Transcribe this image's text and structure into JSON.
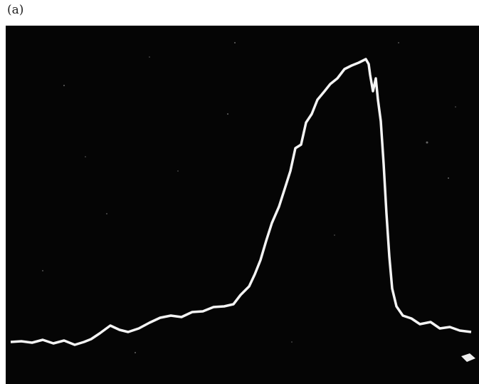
{
  "figure": {
    "label": "(a)"
  }
}
